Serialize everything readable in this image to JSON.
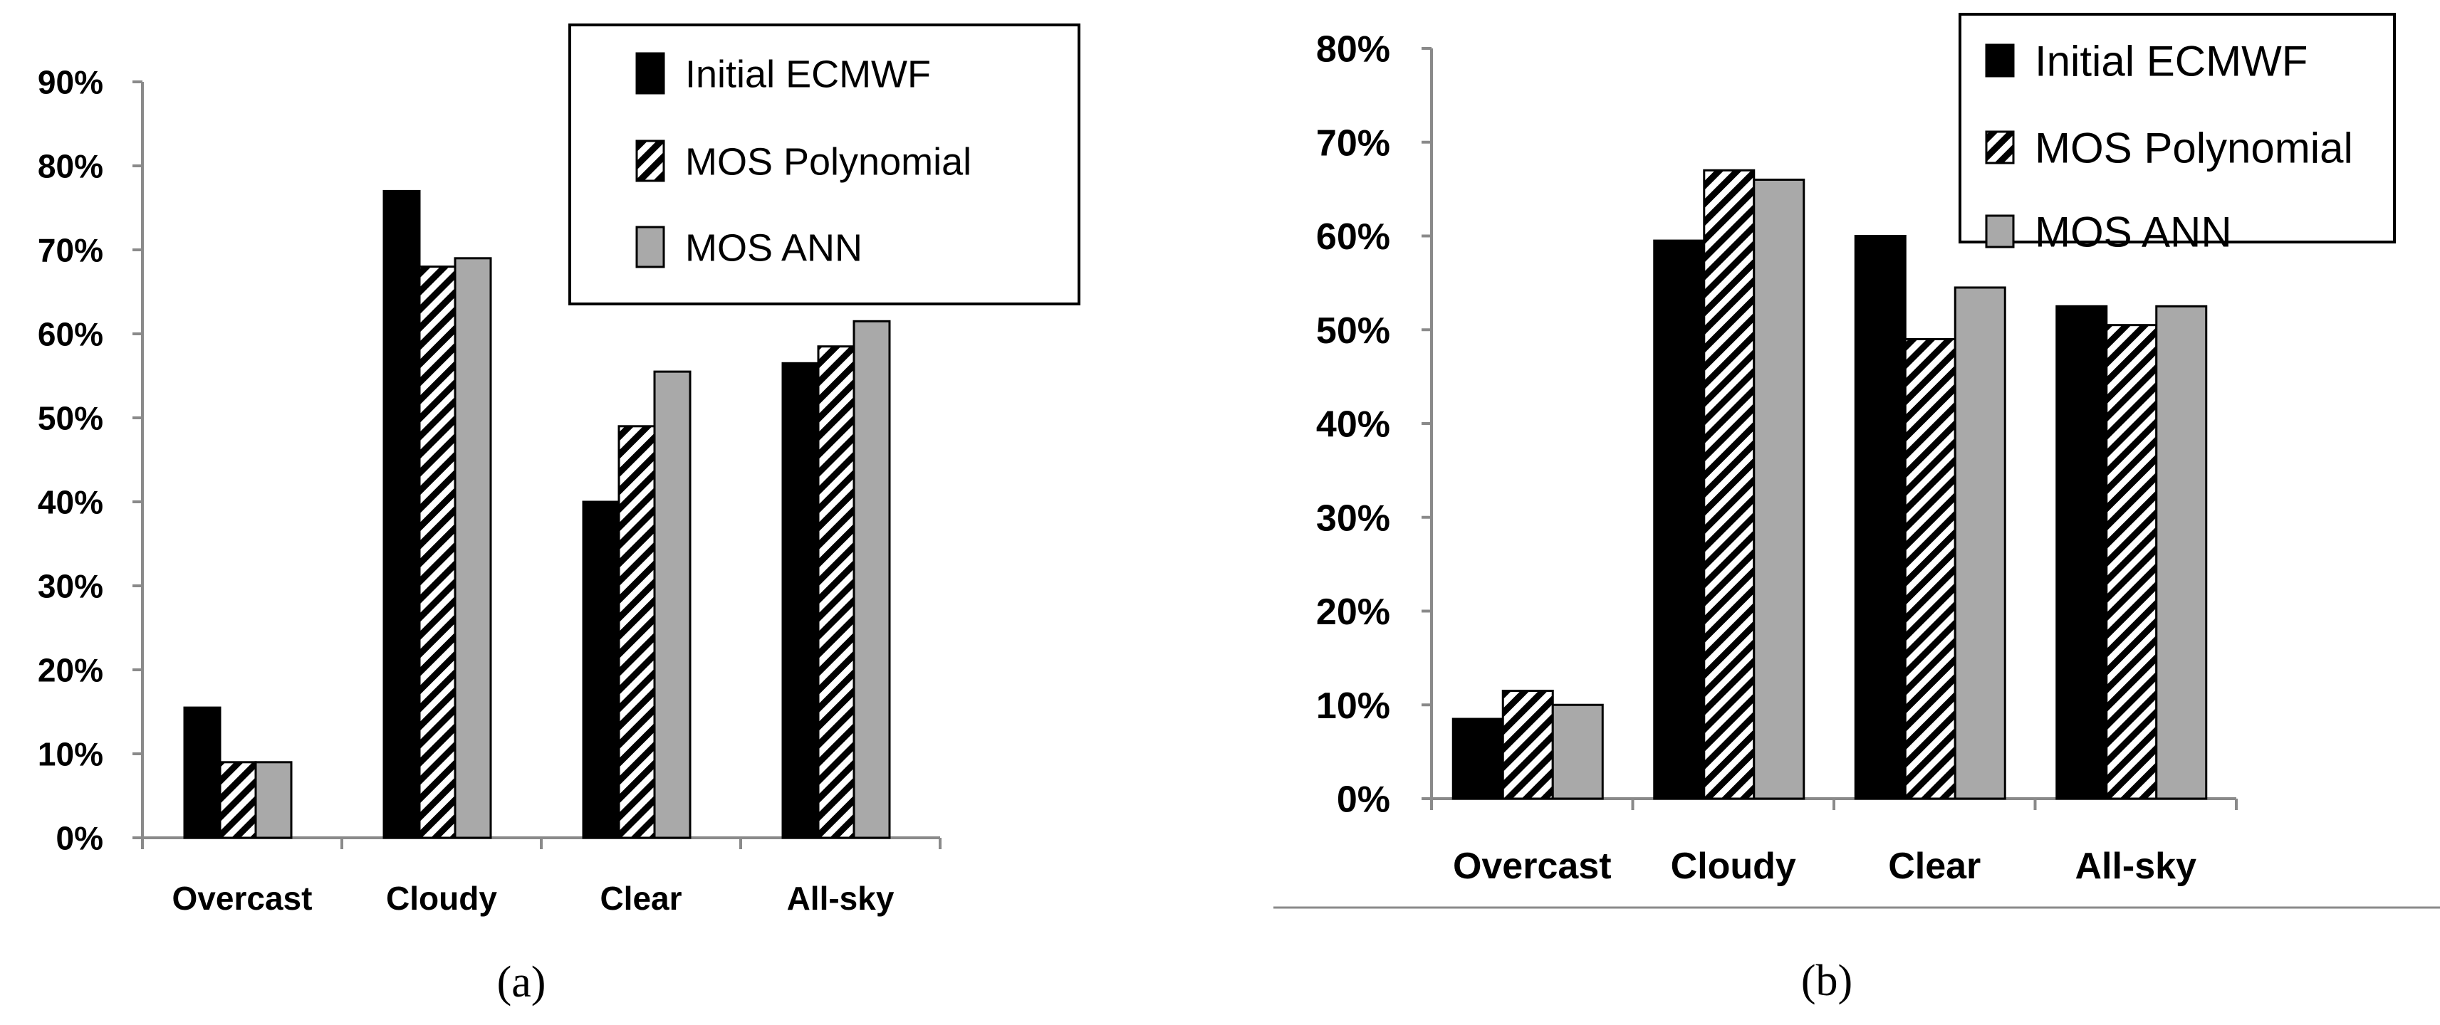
{
  "colors": {
    "initial": "#000000",
    "polynomial_hatch": "#000000",
    "ann": "#a9a9a9",
    "axis": "#8a8a8a",
    "text": "#000000"
  },
  "chart_data": [
    {
      "type": "bar",
      "panel_label": "(a)",
      "categories": [
        "Overcast",
        "Cloudy",
        "Clear",
        "All-sky"
      ],
      "ylim": [
        0,
        90
      ],
      "y_ticks": [
        "0%",
        "10%",
        "20%",
        "30%",
        "40%",
        "50%",
        "60%",
        "70%",
        "80%",
        "90%"
      ],
      "grid": false,
      "legend_position": "top-right",
      "series": [
        {
          "name": "Initial ECMWF",
          "values": [
            15.5,
            77,
            40,
            56.5
          ]
        },
        {
          "name": "MOS Polynomial",
          "values": [
            9,
            68,
            49,
            58.5
          ]
        },
        {
          "name": "MOS ANN",
          "values": [
            9,
            69,
            55.5,
            61.5
          ]
        }
      ]
    },
    {
      "type": "bar",
      "panel_label": "(b)",
      "categories": [
        "Overcast",
        "Cloudy",
        "Clear",
        "All-sky"
      ],
      "ylim": [
        0,
        80
      ],
      "y_ticks": [
        "0%",
        "10%",
        "20%",
        "30%",
        "40%",
        "50%",
        "60%",
        "70%",
        "80%"
      ],
      "grid": false,
      "legend_position": "top-right",
      "series": [
        {
          "name": "Initial ECMWF",
          "values": [
            8.5,
            59.5,
            60,
            52.5
          ]
        },
        {
          "name": "MOS Polynomial",
          "values": [
            11.5,
            67,
            49,
            50.5
          ]
        },
        {
          "name": "MOS ANN",
          "values": [
            10,
            66,
            54.5,
            52.5
          ]
        }
      ]
    }
  ]
}
